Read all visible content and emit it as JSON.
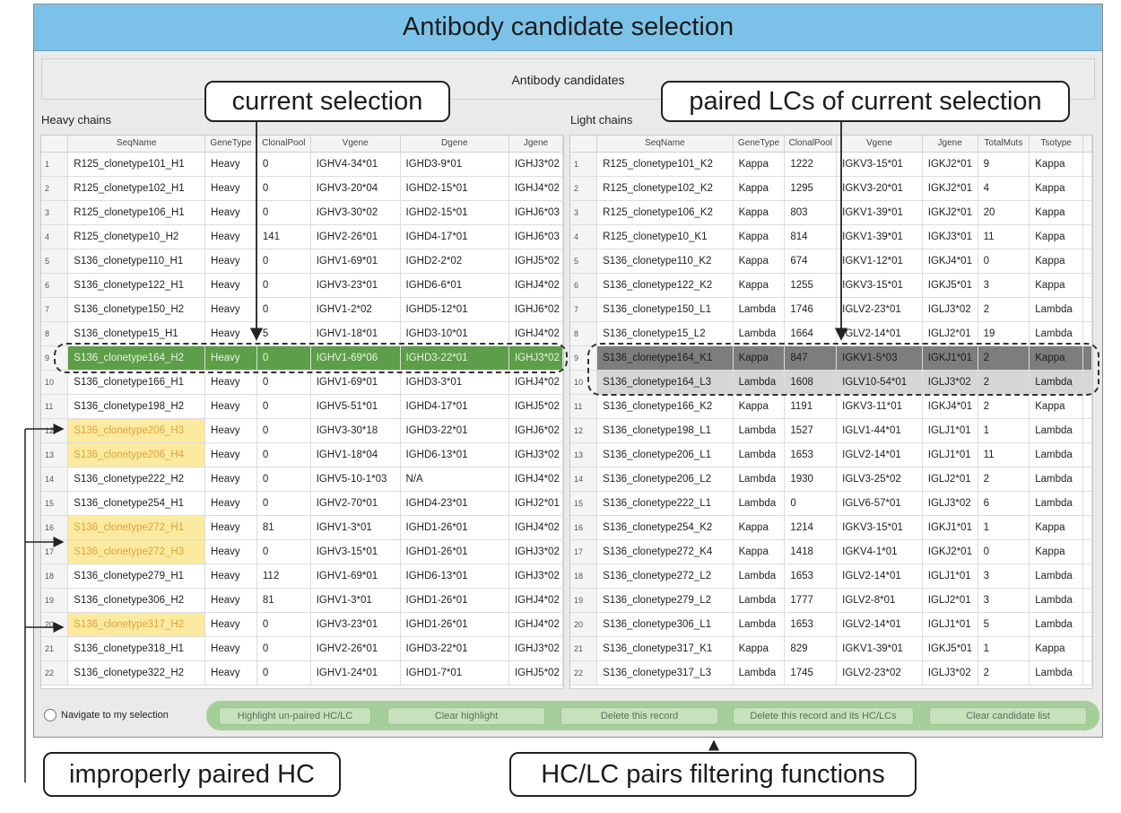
{
  "window": {
    "title": "Antibody candidate selection"
  },
  "section_title": "Antibody candidates",
  "heavy": {
    "title": "Heavy chains",
    "columns": [
      "SeqName",
      "GeneType",
      "ClonalPool",
      "Vgene",
      "Dgene",
      "Jgene"
    ],
    "rows": [
      [
        "1",
        "R125_clonetype101_H1",
        "Heavy",
        "0",
        "IGHV4-34*01",
        "IGHD3-9*01",
        "IGHJ3*02"
      ],
      [
        "2",
        "R125_clonetype102_H1",
        "Heavy",
        "0",
        "IGHV3-20*04",
        "IGHD2-15*01",
        "IGHJ4*02"
      ],
      [
        "3",
        "R125_clonetype106_H1",
        "Heavy",
        "0",
        "IGHV3-30*02",
        "IGHD2-15*01",
        "IGHJ6*03"
      ],
      [
        "4",
        "R125_clonetype10_H2",
        "Heavy",
        "141",
        "IGHV2-26*01",
        "IGHD4-17*01",
        "IGHJ6*03"
      ],
      [
        "5",
        "S136_clonetype110_H1",
        "Heavy",
        "0",
        "IGHV1-69*01",
        "IGHD2-2*02",
        "IGHJ5*02"
      ],
      [
        "6",
        "S136_clonetype122_H1",
        "Heavy",
        "0",
        "IGHV3-23*01",
        "IGHD6-6*01",
        "IGHJ4*02"
      ],
      [
        "7",
        "S136_clonetype150_H2",
        "Heavy",
        "0",
        "IGHV1-2*02",
        "IGHD5-12*01",
        "IGHJ6*02"
      ],
      [
        "8",
        "S136_clonetype15_H1",
        "Heavy",
        "5",
        "IGHV1-18*01",
        "IGHD3-10*01",
        "IGHJ4*02"
      ],
      [
        "9",
        "S136_clonetype164_H2",
        "Heavy",
        "0",
        "IGHV1-69*06",
        "IGHD3-22*01",
        "IGHJ3*02"
      ],
      [
        "10",
        "S136_clonetype166_H1",
        "Heavy",
        "0",
        "IGHV1-69*01",
        "IGHD3-3*01",
        "IGHJ4*02"
      ],
      [
        "11",
        "S136_clonetype198_H2",
        "Heavy",
        "0",
        "IGHV5-51*01",
        "IGHD4-17*01",
        "IGHJ5*02"
      ],
      [
        "12",
        "S136_clonetype206_H3",
        "Heavy",
        "0",
        "IGHV3-30*18",
        "IGHD3-22*01",
        "IGHJ6*02"
      ],
      [
        "13",
        "S136_clonetype206_H4",
        "Heavy",
        "0",
        "IGHV1-18*04",
        "IGHD6-13*01",
        "IGHJ3*02"
      ],
      [
        "14",
        "S136_clonetype222_H2",
        "Heavy",
        "0",
        "IGHV5-10-1*03",
        "N/A",
        "IGHJ4*02"
      ],
      [
        "15",
        "S136_clonetype254_H1",
        "Heavy",
        "0",
        "IGHV2-70*01",
        "IGHD4-23*01",
        "IGHJ2*01"
      ],
      [
        "16",
        "S136_clonetype272_H1",
        "Heavy",
        "81",
        "IGHV1-3*01",
        "IGHD1-26*01",
        "IGHJ4*02"
      ],
      [
        "17",
        "S136_clonetype272_H3",
        "Heavy",
        "0",
        "IGHV3-15*01",
        "IGHD1-26*01",
        "IGHJ3*02"
      ],
      [
        "18",
        "S136_clonetype279_H1",
        "Heavy",
        "112",
        "IGHV1-69*01",
        "IGHD6-13*01",
        "IGHJ3*02"
      ],
      [
        "19",
        "S136_clonetype306_H2",
        "Heavy",
        "81",
        "IGHV1-3*01",
        "IGHD1-26*01",
        "IGHJ4*02"
      ],
      [
        "20",
        "S136_clonetype317_H2",
        "Heavy",
        "0",
        "IGHV3-23*01",
        "IGHD1-26*01",
        "IGHJ4*02"
      ],
      [
        "21",
        "S136_clonetype318_H1",
        "Heavy",
        "0",
        "IGHV2-26*01",
        "IGHD3-22*01",
        "IGHJ3*02"
      ],
      [
        "22",
        "S136_clonetype322_H2",
        "Heavy",
        "0",
        "IGHV1-24*01",
        "IGHD1-7*01",
        "IGHJ5*02"
      ]
    ],
    "selected_index": 8,
    "improper_indices": [
      11,
      12,
      15,
      16,
      19
    ]
  },
  "light": {
    "title": "Light chains",
    "columns": [
      "SeqName",
      "GeneType",
      "ClonalPool",
      "Vgene",
      "Jgene",
      "TotalMuts",
      "Tsotype"
    ],
    "rows": [
      [
        "1",
        "R125_clonetype101_K2",
        "Kappa",
        "1222",
        "IGKV3-15*01",
        "IGKJ2*01",
        "9",
        "Kappa"
      ],
      [
        "2",
        "R125_clonetype102_K2",
        "Kappa",
        "1295",
        "IGKV3-20*01",
        "IGKJ2*01",
        "4",
        "Kappa"
      ],
      [
        "3",
        "R125_clonetype106_K2",
        "Kappa",
        "803",
        "IGKV1-39*01",
        "IGKJ2*01",
        "20",
        "Kappa"
      ],
      [
        "4",
        "R125_clonetype10_K1",
        "Kappa",
        "814",
        "IGKV1-39*01",
        "IGKJ3*01",
        "11",
        "Kappa"
      ],
      [
        "5",
        "S136_clonetype110_K2",
        "Kappa",
        "674",
        "IGKV1-12*01",
        "IGKJ4*01",
        "0",
        "Kappa"
      ],
      [
        "6",
        "S136_clonetype122_K2",
        "Kappa",
        "1255",
        "IGKV3-15*01",
        "IGKJ5*01",
        "3",
        "Kappa"
      ],
      [
        "7",
        "S136_clonetype150_L1",
        "Lambda",
        "1746",
        "IGLV2-23*01",
        "IGLJ3*02",
        "2",
        "Lambda"
      ],
      [
        "8",
        "S136_clonetype15_L2",
        "Lambda",
        "1664",
        "IGLV2-14*01",
        "IGLJ2*01",
        "19",
        "Lambda"
      ],
      [
        "9",
        "S136_clonetype164_K1",
        "Kappa",
        "847",
        "IGKV1-5*03",
        "IGKJ1*01",
        "2",
        "Kappa"
      ],
      [
        "10",
        "S136_clonetype164_L3",
        "Lambda",
        "1608",
        "IGLV10-54*01",
        "IGLJ3*02",
        "2",
        "Lambda"
      ],
      [
        "11",
        "S136_clonetype166_K2",
        "Kappa",
        "1191",
        "IGKV3-11*01",
        "IGKJ4*01",
        "2",
        "Kappa"
      ],
      [
        "12",
        "S136_clonetype198_L1",
        "Lambda",
        "1527",
        "IGLV1-44*01",
        "IGLJ1*01",
        "1",
        "Lambda"
      ],
      [
        "13",
        "S136_clonetype206_L1",
        "Lambda",
        "1653",
        "IGLV2-14*01",
        "IGLJ1*01",
        "11",
        "Lambda"
      ],
      [
        "14",
        "S136_clonetype206_L2",
        "Lambda",
        "1930",
        "IGLV3-25*02",
        "IGLJ2*01",
        "2",
        "Lambda"
      ],
      [
        "15",
        "S136_clonetype222_L1",
        "Lambda",
        "0",
        "IGLV6-57*01",
        "IGLJ3*02",
        "6",
        "Lambda"
      ],
      [
        "16",
        "S136_clonetype254_K2",
        "Kappa",
        "1214",
        "IGKV3-15*01",
        "IGKJ1*01",
        "1",
        "Kappa"
      ],
      [
        "17",
        "S136_clonetype272_K4",
        "Kappa",
        "1418",
        "IGKV4-1*01",
        "IGKJ2*01",
        "0",
        "Kappa"
      ],
      [
        "18",
        "S136_clonetype272_L2",
        "Lambda",
        "1653",
        "IGLV2-14*01",
        "IGLJ1*01",
        "3",
        "Lambda"
      ],
      [
        "19",
        "S136_clonetype279_L2",
        "Lambda",
        "1777",
        "IGLV2-8*01",
        "IGLJ2*01",
        "3",
        "Lambda"
      ],
      [
        "20",
        "S136_clonetype306_L1",
        "Lambda",
        "1653",
        "IGLV2-14*01",
        "IGLJ1*01",
        "5",
        "Lambda"
      ],
      [
        "21",
        "S136_clonetype317_K1",
        "Kappa",
        "829",
        "IGKV1-39*01",
        "IGKJ5*01",
        "1",
        "Kappa"
      ],
      [
        "22",
        "S136_clonetype317_L3",
        "Lambda",
        "1745",
        "IGLV2-23*02",
        "IGLJ3*02",
        "2",
        "Lambda"
      ]
    ],
    "selected_dark_index": 8,
    "selected_light_index": 9
  },
  "bottom": {
    "navigate_label": "Navigate to my selection",
    "buttons": [
      "Highlight un-paired HC/LC",
      "Clear highlight",
      "Delete this record",
      "Delete this record and its HC/LCs",
      "Clear candidate list"
    ]
  },
  "annotations": {
    "current_selection": "current selection",
    "paired_lcs": "paired LCs of current selection",
    "improper_hc": "improperly paired HC",
    "filter_functions": "HC/LC pairs filtering functions"
  },
  "colors": {
    "title_bar": "#7cc2e8",
    "selected_hc": "#5d9e48",
    "paired_lc_dark": "#7d7d7d",
    "paired_lc_light": "#d6d6d6",
    "improper_hc_bg": "#fbeaa0",
    "improper_hc_text": "#e0a43a",
    "filter_area": "#a4cf9a"
  }
}
